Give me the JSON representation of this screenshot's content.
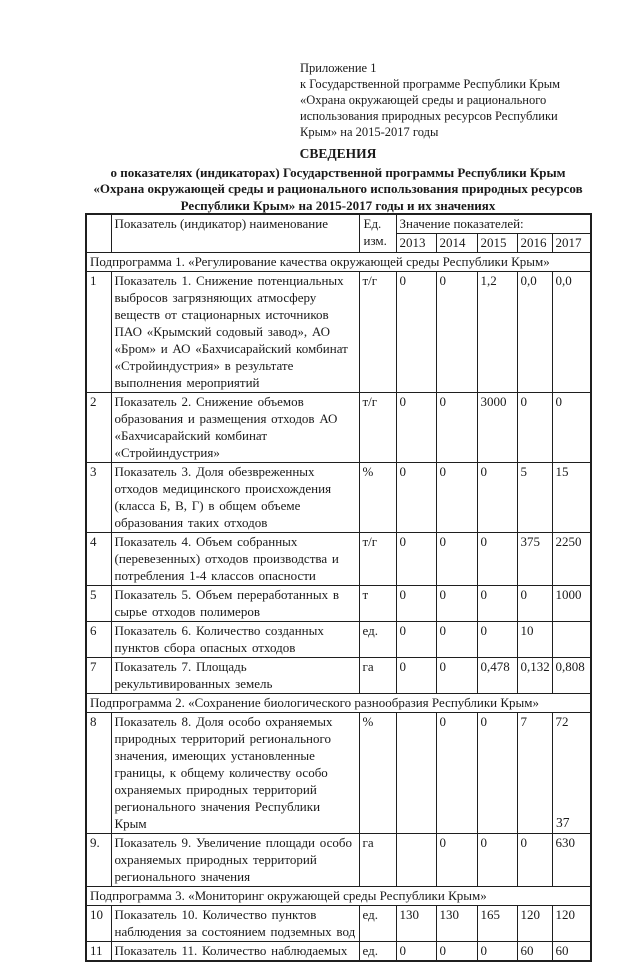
{
  "document": {
    "appendix_lines": [
      "Приложение 1",
      "к Государственной программе Республики Крым",
      "«Охрана окружающей среды и рационального",
      "использования природных ресурсов Республики",
      "Крым» на 2015-2017 годы"
    ],
    "title_heading": "СВЕДЕНИЯ",
    "title_lines": [
      "о показателях (индикаторах) Государственной программы Республики Крым",
      "«Охрана окружающей среды и рационального использования природных ресурсов",
      "Республики Крым» на 2015-2017 годы и их значениях"
    ],
    "page_number": "37"
  },
  "table": {
    "header": {
      "indicator_column": "Показатель (индикатор) наименование",
      "unit_line1": "Ед.",
      "unit_line2": "изм.",
      "values_label": "Значение показателей:",
      "years": [
        "2013",
        "2014",
        "2015",
        "2016",
        "2017"
      ]
    },
    "rows": [
      {
        "type": "subprogram",
        "text": "Подпрограмма 1. «Регулирование качества окружающей среды Республики Крым»"
      },
      {
        "type": "indicator",
        "num": "1",
        "name": "Показатель 1. Снижение потенциальных выбросов загрязняющих атмосферу веществ от стационарных источников ПАО «Крымский содовый завод», АО «Бром» и АО «Бахчисарайский комбинат «Стройиндустрия» в результате выполнения мероприятий",
        "unit": "т/г",
        "values": [
          "0",
          "0",
          "1,2",
          "0,0",
          "0,0"
        ]
      },
      {
        "type": "indicator",
        "num": "2",
        "name": "Показатель 2. Снижение объемов образования и размещения отходов АО «Бахчисарайский комбинат «Стройиндустрия»",
        "unit": "т/г",
        "values": [
          "0",
          "0",
          "3000",
          "0",
          "0"
        ]
      },
      {
        "type": "indicator",
        "num": "3",
        "name": "Показатель 3. Доля обезвреженных отходов медицинского происхождения (класса Б, В, Г) в общем объеме образования таких отходов",
        "unit": "%",
        "values": [
          "0",
          "0",
          "0",
          "5",
          "15"
        ]
      },
      {
        "type": "indicator",
        "num": "4",
        "name": "Показатель 4. Объем собранных (перевезенных) отходов производства и потребления 1-4 классов опасности",
        "unit": "т/г",
        "values": [
          "0",
          "0",
          "0",
          "375",
          "2250"
        ]
      },
      {
        "type": "indicator",
        "num": "5",
        "name": "Показатель 5. Объем переработанных в сырье отходов полимеров",
        "unit": "т",
        "values": [
          "0",
          "0",
          "0",
          "0",
          "1000"
        ]
      },
      {
        "type": "indicator",
        "num": "6",
        "name": "Показатель 6. Количество созданных пунктов сбора опасных отходов",
        "unit": "ед.",
        "values": [
          "0",
          "0",
          "0",
          "10",
          ""
        ]
      },
      {
        "type": "indicator",
        "num": "7",
        "name": "Показатель 7. Площадь рекультивированных земель",
        "unit": "га",
        "values": [
          "0",
          "0",
          "0,478",
          "0,132",
          "0,808"
        ]
      },
      {
        "type": "subprogram",
        "text": "Подпрограмма 2. «Сохранение биологического разнообразия Республики Крым»"
      },
      {
        "type": "indicator",
        "num": "8",
        "name": "Показатель 8. Доля особо охраняемых природных территорий регионального значения, имеющих установленные границы, к общему количеству особо охраняемых природных территорий регионального значения Республики Крым",
        "unit": "%",
        "values": [
          "",
          "0",
          "0",
          "7",
          "72"
        ]
      },
      {
        "type": "indicator",
        "num": "9.",
        "name": "Показатель 9. Увеличение площади особо охраняемых природных территорий регионального значения",
        "unit": "га",
        "values": [
          "",
          "0",
          "0",
          "0",
          "630"
        ]
      },
      {
        "type": "subprogram",
        "text": "Подпрограмма 3. «Мониторинг окружающей среды Республики Крым»"
      },
      {
        "type": "indicator",
        "num": "10",
        "name": "Показатель 10. Количество пунктов наблюдения за состоянием подземных вод",
        "unit": "ед.",
        "values": [
          "130",
          "130",
          "165",
          "120",
          "120"
        ]
      },
      {
        "type": "indicator",
        "num": "11",
        "name": "Показатель 11. Количество наблюдаемых",
        "unit": "ед.",
        "values": [
          "0",
          "0",
          "0",
          "60",
          "60"
        ]
      }
    ]
  },
  "colors": {
    "text": "#1a1a1a",
    "border": "#1f1f1f",
    "background": "#ffffff"
  }
}
